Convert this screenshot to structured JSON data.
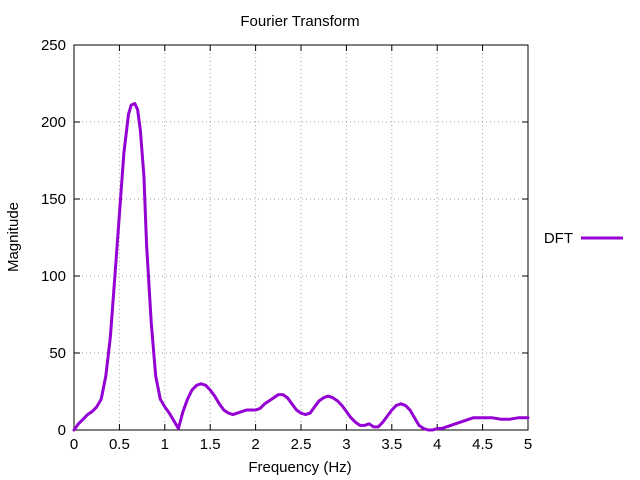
{
  "chart_data": {
    "type": "line",
    "title": "Fourier Transform",
    "xlabel": "Frequency (Hz)",
    "ylabel": "Magnitude",
    "xlim": [
      0,
      5
    ],
    "ylim": [
      0,
      250
    ],
    "xticks": [
      0,
      0.5,
      1,
      1.5,
      2,
      2.5,
      3,
      3.5,
      4,
      4.5,
      5
    ],
    "yticks": [
      0,
      50,
      100,
      150,
      200,
      250
    ],
    "xtick_labels": [
      "0",
      "0.5",
      "1",
      "1.5",
      "2",
      "2.5",
      "3",
      "3.5",
      "4",
      "4.5",
      "5"
    ],
    "ytick_labels": [
      "0",
      "50",
      "100",
      "150",
      "200",
      "250"
    ],
    "grid": true,
    "legend_position": "right",
    "series": [
      {
        "name": "DFT",
        "color": "#9400d3",
        "x": [
          0,
          0.05,
          0.1,
          0.15,
          0.2,
          0.25,
          0.3,
          0.35,
          0.4,
          0.45,
          0.5,
          0.55,
          0.6,
          0.63,
          0.67,
          0.7,
          0.73,
          0.77,
          0.8,
          0.85,
          0.9,
          0.95,
          1.0,
          1.05,
          1.1,
          1.15,
          1.2,
          1.25,
          1.3,
          1.35,
          1.4,
          1.45,
          1.5,
          1.55,
          1.6,
          1.65,
          1.7,
          1.75,
          1.8,
          1.85,
          1.9,
          1.95,
          2.0,
          2.05,
          2.1,
          2.2,
          2.25,
          2.3,
          2.35,
          2.4,
          2.45,
          2.5,
          2.55,
          2.6,
          2.65,
          2.7,
          2.75,
          2.8,
          2.85,
          2.9,
          2.95,
          3.0,
          3.05,
          3.1,
          3.15,
          3.2,
          3.25,
          3.3,
          3.35,
          3.4,
          3.45,
          3.5,
          3.55,
          3.6,
          3.65,
          3.7,
          3.75,
          3.8,
          3.85,
          3.9,
          3.95,
          4.0,
          4.05,
          4.1,
          4.15,
          4.2,
          4.25,
          4.3,
          4.35,
          4.4,
          4.5,
          4.6,
          4.7,
          4.8,
          4.9,
          5.0
        ],
        "values": [
          0,
          4,
          7,
          10,
          12,
          15,
          20,
          35,
          60,
          100,
          140,
          180,
          205,
          211,
          212,
          208,
          195,
          165,
          120,
          70,
          35,
          20,
          15,
          11,
          6,
          1,
          12,
          20,
          26,
          29,
          30,
          29,
          26,
          22,
          17,
          13,
          11,
          10,
          11,
          12,
          13,
          13,
          13,
          14,
          17,
          21,
          23,
          23,
          21,
          17,
          13,
          11,
          10,
          11,
          15,
          19,
          21,
          22,
          21,
          19,
          16,
          12,
          8,
          5,
          3,
          3,
          4,
          2,
          2,
          5,
          9,
          13,
          16,
          17,
          16,
          13,
          8,
          3,
          1,
          0,
          0,
          1,
          1,
          2,
          3,
          4,
          5,
          6,
          7,
          8,
          8,
          8,
          7,
          7,
          8,
          8
        ]
      }
    ]
  }
}
